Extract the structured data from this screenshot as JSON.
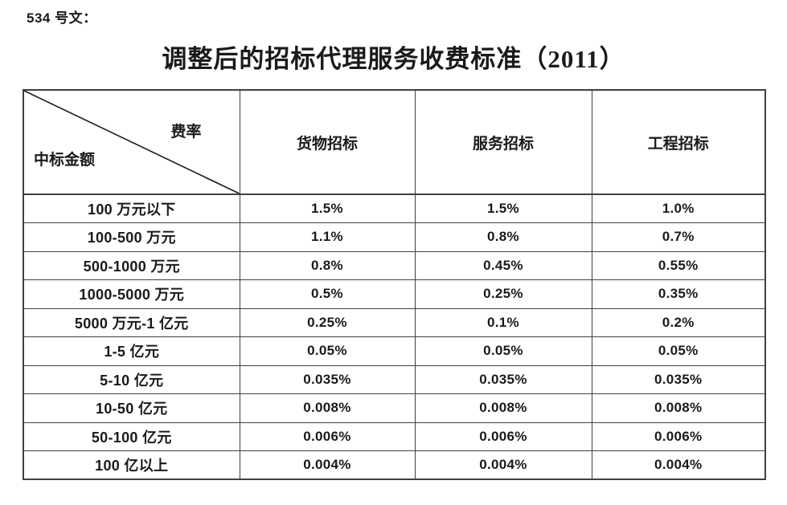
{
  "doc_label": "534 号文：",
  "title": "调整后的招标代理服务收费标准（2011）",
  "table": {
    "corner": {
      "top_right_label": "费率",
      "bottom_left_label": "中标金额"
    },
    "columns": [
      "货物招标",
      "服务招标",
      "工程招标"
    ],
    "rows": [
      {
        "label": "100 万元以下",
        "values": [
          "1.5%",
          "1.5%",
          "1.0%"
        ]
      },
      {
        "label": "100-500 万元",
        "values": [
          "1.1%",
          "0.8%",
          "0.7%"
        ]
      },
      {
        "label": "500-1000 万元",
        "values": [
          "0.8%",
          "0.45%",
          "0.55%"
        ]
      },
      {
        "label": "1000-5000 万元",
        "values": [
          "0.5%",
          "0.25%",
          "0.35%"
        ]
      },
      {
        "label": "5000 万元-1 亿元",
        "values": [
          "0.25%",
          "0.1%",
          "0.2%"
        ]
      },
      {
        "label": "1-5 亿元",
        "values": [
          "0.05%",
          "0.05%",
          "0.05%"
        ]
      },
      {
        "label": "5-10 亿元",
        "values": [
          "0.035%",
          "0.035%",
          "0.035%"
        ]
      },
      {
        "label": "10-50 亿元",
        "values": [
          "0.008%",
          "0.008%",
          "0.008%"
        ]
      },
      {
        "label": "50-100 亿元",
        "values": [
          "0.006%",
          "0.006%",
          "0.006%"
        ]
      },
      {
        "label": "100 亿以上",
        "values": [
          "0.004%",
          "0.004%",
          "0.004%"
        ]
      }
    ]
  },
  "colors": {
    "text": "#1a1a1a",
    "border": "#404040",
    "background": "#ffffff"
  }
}
